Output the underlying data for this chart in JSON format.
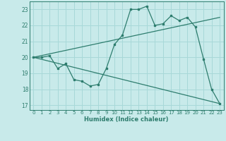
{
  "xlabel": "Humidex (Indice chaleur)",
  "background_color": "#c8eaea",
  "grid_color": "#a8d8d8",
  "line_color": "#2e7d6e",
  "ylim": [
    16.7,
    23.5
  ],
  "xlim": [
    -0.5,
    23.5
  ],
  "yticks": [
    17,
    18,
    19,
    20,
    21,
    22,
    23
  ],
  "xticks": [
    0,
    1,
    2,
    3,
    4,
    5,
    6,
    7,
    8,
    9,
    10,
    11,
    12,
    13,
    14,
    15,
    16,
    17,
    18,
    19,
    20,
    21,
    22,
    23
  ],
  "line1_x": [
    0,
    1,
    2,
    3,
    4,
    5,
    6,
    7,
    8,
    9,
    10,
    11,
    12,
    13,
    14,
    15,
    16,
    17,
    18,
    19,
    20,
    21,
    22,
    23
  ],
  "line1_y": [
    20.0,
    20.0,
    20.1,
    19.3,
    19.6,
    18.6,
    18.5,
    18.2,
    18.3,
    19.3,
    20.8,
    21.4,
    23.0,
    23.0,
    23.2,
    22.0,
    22.1,
    22.6,
    22.3,
    22.5,
    21.9,
    19.9,
    18.0,
    17.1
  ],
  "line2_x": [
    0,
    23
  ],
  "line2_y": [
    20.0,
    22.5
  ],
  "line3_x": [
    0,
    23
  ],
  "line3_y": [
    20.0,
    17.1
  ]
}
